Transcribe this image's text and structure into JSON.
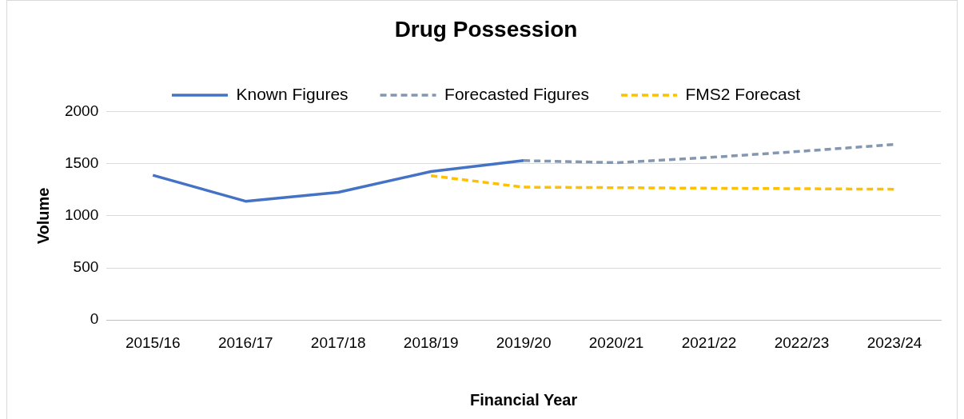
{
  "chart_data": {
    "type": "line",
    "title": "Drug Possession",
    "xlabel": "Financial Year",
    "ylabel": "Volume",
    "categories": [
      "2015/16",
      "2016/17",
      "2017/18",
      "2018/19",
      "2019/20",
      "2020/21",
      "2021/22",
      "2022/23",
      "2023/24"
    ],
    "series": [
      {
        "name": "Known Figures",
        "color": "#4472c4",
        "line_style": "solid",
        "values": [
          1390,
          1140,
          1225,
          1425,
          1530,
          null,
          null,
          null,
          null
        ]
      },
      {
        "name": "Forecasted Figures",
        "color": "#8497b0",
        "line_style": "dashed",
        "values": [
          null,
          null,
          null,
          null,
          1530,
          1510,
          1560,
          1620,
          1685
        ]
      },
      {
        "name": "FMS2 Forecast",
        "color": "#ffc000",
        "line_style": "dashed",
        "values": [
          null,
          null,
          null,
          1385,
          1275,
          1270,
          1265,
          1260,
          1255
        ]
      }
    ],
    "ylim": [
      0,
      2000
    ],
    "yticks": [
      0,
      500,
      1000,
      1500,
      2000
    ],
    "grid": "y",
    "legend": "top",
    "marker": "none"
  }
}
